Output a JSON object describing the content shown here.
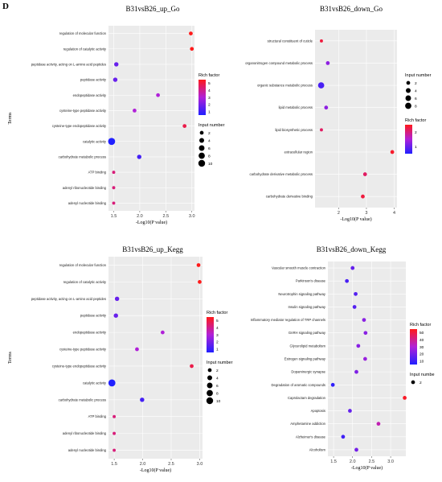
{
  "figure_label": "D",
  "colors": {
    "panel_bg": "#ebebeb",
    "grid": "#ffffff",
    "low": "#2020ff",
    "high": "#ff1a1a"
  },
  "legend_titles": {
    "rich": "Rich factor",
    "input": "Input number"
  },
  "chart_data": [
    {
      "type": "scatter",
      "title": "B31vsB26_up_Go",
      "xlabel": "-Log10(P value)",
      "ylabel": "Terms",
      "xticks": [
        1.5,
        2.0,
        2.5,
        3.0
      ],
      "xticklabels": [
        "1.5",
        "2.0",
        "2.5",
        "3.0"
      ],
      "xlim": [
        1.4,
        3.05
      ],
      "terms": [
        "regulation of molecular function",
        "regulation of catalytic activity",
        "peptidase activity, acting on L-amino acid peptides",
        "peptidase activity",
        "endopeptidase activity",
        "cysteine-type peptidase activity",
        "cysteine-type endopeptidase activity",
        "catalytic activity",
        "carbohydrate metabolic process",
        "ATP binding",
        "adenyl ribonucleotide binding",
        "adenyl nucleotide binding"
      ],
      "x": [
        2.98,
        3.0,
        1.55,
        1.53,
        2.35,
        1.9,
        2.86,
        1.46,
        1.99,
        1.5,
        1.5,
        1.5
      ],
      "size": [
        2,
        2,
        3,
        3,
        2,
        2,
        2,
        11,
        3,
        1,
        1,
        1
      ],
      "rich": [
        5,
        5,
        2,
        2,
        3,
        3,
        4.5,
        1,
        1.5,
        4,
        4,
        4
      ],
      "color_legend": {
        "title": "Rich factor",
        "ticks": [
          "5",
          "4",
          "3",
          "2",
          "1"
        ],
        "min": 1,
        "max": 5
      },
      "size_legend": {
        "title": "Input number",
        "values": [
          "2",
          "4",
          "6",
          "8",
          "10"
        ]
      }
    },
    {
      "type": "scatter",
      "title": "B31vsB26_down_Go",
      "xlabel": "-Log10(P value)",
      "ylabel": "",
      "xticks": [
        2,
        3,
        4
      ],
      "xticklabels": [
        "2",
        "3",
        "4"
      ],
      "xlim": [
        1.15,
        4.1
      ],
      "terms": [
        "structural constituent of cuticle",
        "organonitrogen compound metabolic process",
        "organic substance metabolic process",
        "lipid metabolic process",
        "lipid biosynthetic process",
        "extracellular region",
        "carbohydrate derivative metabolic process",
        "carbohydrate derivative binding"
      ],
      "x": [
        1.38,
        1.61,
        1.37,
        1.55,
        1.38,
        3.93,
        2.95,
        2.87
      ],
      "size": [
        1,
        2,
        8,
        2,
        1,
        2,
        2,
        2
      ],
      "rich": [
        2.6,
        1.5,
        1.0,
        1.5,
        2.4,
        2.7,
        2.4,
        2.6
      ],
      "color_legend": {
        "title": "Rich factor",
        "ticks": [
          "2",
          "1"
        ],
        "min": 0.7,
        "max": 2.8
      },
      "size_legend": {
        "title": "Input number",
        "values": [
          "2",
          "4",
          "6",
          "8"
        ]
      }
    },
    {
      "type": "scatter",
      "title": "B31vsB26_up_Kegg",
      "xlabel": "-Log10(P value)",
      "ylabel": "Terms",
      "xticks": [
        1.5,
        2.0,
        2.5,
        3.0
      ],
      "xticklabels": [
        "1.5",
        "2.0",
        "2.5",
        "3.0"
      ],
      "xlim": [
        1.4,
        3.05
      ],
      "terms": [
        "regulation of molecular function",
        "regulation of catalytic activity",
        "peptidase activity, acting on L-amino acid peptides",
        "peptidase activity",
        "endopeptidase activity",
        "cysteine-type peptidase activity",
        "cysteine-type endopeptidase activity",
        "catalytic activity",
        "carbohydrate metabolic process",
        "ATP binding",
        "adenyl ribonucleotide binding",
        "adenyl nucleotide binding"
      ],
      "x": [
        2.98,
        3.0,
        1.55,
        1.53,
        2.35,
        1.9,
        2.86,
        1.46,
        1.99,
        1.5,
        1.5,
        1.5
      ],
      "size": [
        2,
        2,
        3,
        3,
        2,
        2,
        2,
        11,
        3,
        1,
        1,
        1
      ],
      "rich": [
        5,
        5,
        2,
        2,
        3,
        3,
        4.5,
        1,
        1.5,
        4,
        4,
        4
      ],
      "color_legend": {
        "title": "Rich factor",
        "ticks": [
          "5",
          "4",
          "3",
          "2",
          "1"
        ],
        "min": 1,
        "max": 5
      },
      "size_legend": {
        "title": "Input number",
        "values": [
          "2",
          "4",
          "6",
          "8",
          "10"
        ]
      }
    },
    {
      "type": "scatter",
      "title": "B31vsB26_down_Kegg",
      "xlabel": "-Log10(P value)",
      "ylabel": "",
      "xticks": [
        1.5,
        2.0,
        2.5,
        3.0
      ],
      "xticklabels": [
        "1.5",
        "2.0",
        "2.5",
        "3.0"
      ],
      "xlim": [
        1.35,
        3.4
      ],
      "terms": [
        "Vascular smooth muscle contraction",
        "Parkinson's disease",
        "Neurotrophin signaling pathway",
        "Insulin signaling pathway",
        "Inflammatory mediator regulation of TRP channels",
        "GnRH signaling pathway",
        "Glycerolipid metabolism",
        "Estrogen signaling pathway",
        "Dopaminergic synapse",
        "Degradation of aromatic compounds",
        "Caprolactam degradation",
        "Apoptosis",
        "Amphetamine addiction",
        "Alzheimer's disease",
        "Alcoholism"
      ],
      "x": [
        2.0,
        1.85,
        2.08,
        2.05,
        2.3,
        2.34,
        2.15,
        2.33,
        2.1,
        1.48,
        3.37,
        1.93,
        2.68,
        1.75,
        2.1
      ],
      "size": [
        2,
        2,
        2,
        2,
        2,
        2,
        2,
        2,
        2,
        2,
        2,
        2,
        2,
        2,
        2
      ],
      "rich": [
        15,
        10,
        12,
        12,
        22,
        22,
        22,
        25,
        20,
        5,
        55,
        15,
        35,
        8,
        18
      ],
      "color_legend": {
        "title": "Rich factor",
        "ticks": [
          "50",
          "40",
          "30",
          "20",
          "10"
        ],
        "min": 2,
        "max": 57
      },
      "size_legend": {
        "title": "Input numbe",
        "values": [
          "2"
        ]
      }
    }
  ]
}
